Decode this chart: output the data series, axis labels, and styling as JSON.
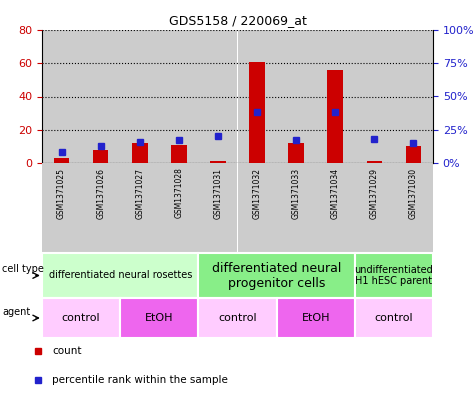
{
  "title": "GDS5158 / 220069_at",
  "samples": [
    "GSM1371025",
    "GSM1371026",
    "GSM1371027",
    "GSM1371028",
    "GSM1371031",
    "GSM1371032",
    "GSM1371033",
    "GSM1371034",
    "GSM1371029",
    "GSM1371030"
  ],
  "counts": [
    3,
    8,
    12,
    11,
    1,
    61,
    12,
    56,
    1,
    10
  ],
  "percentile": [
    8,
    13,
    16,
    17,
    20,
    38,
    17,
    38,
    18,
    15
  ],
  "ylim_left": [
    0,
    80
  ],
  "ylim_right": [
    0,
    100
  ],
  "yticks_left": [
    0,
    20,
    40,
    60,
    80
  ],
  "ytick_labels_right": [
    "0%",
    "25%",
    "50%",
    "75%",
    "100%"
  ],
  "yticks_right": [
    0,
    25,
    50,
    75,
    100
  ],
  "bar_color": "#cc0000",
  "square_color": "#2222cc",
  "background_color": "#ffffff",
  "col_bg_color": "#cccccc",
  "bar_width": 0.4,
  "cell_type_groups": [
    {
      "label": "differentiated neural rosettes",
      "start": 0,
      "end": 4,
      "color": "#ccffcc",
      "fontsize": 7
    },
    {
      "label": "differentiated neural\nprogenitor cells",
      "start": 4,
      "end": 8,
      "color": "#88ee88",
      "fontsize": 9
    },
    {
      "label": "undifferentiated\nH1 hESC parent",
      "start": 8,
      "end": 10,
      "color": "#88ee88",
      "fontsize": 7
    }
  ],
  "agent_groups": [
    {
      "label": "control",
      "start": 0,
      "end": 2,
      "color": "#ffccff"
    },
    {
      "label": "EtOH",
      "start": 2,
      "end": 4,
      "color": "#ee66ee"
    },
    {
      "label": "control",
      "start": 4,
      "end": 6,
      "color": "#ffccff"
    },
    {
      "label": "EtOH",
      "start": 6,
      "end": 8,
      "color": "#ee66ee"
    },
    {
      "label": "control",
      "start": 8,
      "end": 10,
      "color": "#ffccff"
    }
  ],
  "tick_label_color_left": "#cc0000",
  "tick_label_color_right": "#2222cc",
  "legend_count_color": "#cc0000",
  "legend_percentile_color": "#2222cc"
}
